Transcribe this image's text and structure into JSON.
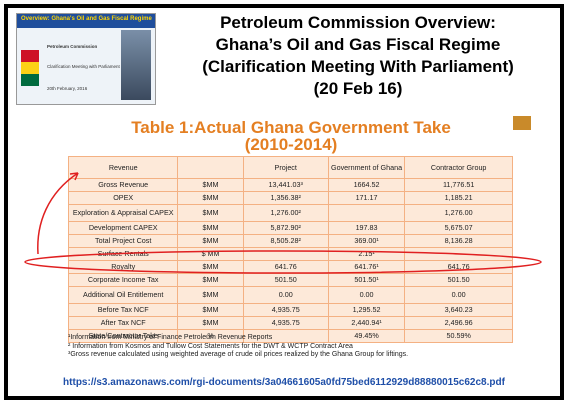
{
  "thumbnail": {
    "title": "Overview: Ghana's Oil and Gas Fiscal Regime",
    "org": "Petroleum Commission",
    "subtitle": "Clarification Meeting with Parliament",
    "date": "20th February, 2016"
  },
  "header": {
    "lines": [
      "Petroleum Commission Overview:",
      "Ghana’s Oil and Gas Fiscal Regime",
      "(Clarification Meeting With Parliament)",
      "(20 Feb 16)"
    ]
  },
  "table": {
    "title": [
      "Table 1:Actual Ghana Government Take",
      "(2010-2014)"
    ],
    "columns": [
      "Revenue",
      "",
      "Project",
      "Government of Ghana",
      "Contractor Group"
    ],
    "rows": [
      [
        "Gross Revenue",
        "$MM",
        "13,441.03³",
        "1664.52",
        "11,776.51"
      ],
      [
        "OPEX",
        "$MM",
        "1,356.38²",
        "171.17",
        "1,185.21"
      ],
      [
        "Exploration & Appraisal CAPEX",
        "$MM",
        "1,276.00²",
        "",
        "1,276.00"
      ],
      [
        "Development CAPEX",
        "$MM",
        "5,872.90²",
        "197.83",
        "5,675.07"
      ],
      [
        "Total Project Cost",
        "$MM",
        "8,505.28²",
        "369.00¹",
        "8,136.28"
      ],
      [
        "Surface Rentals",
        "$ MM",
        "",
        "2.15¹",
        ""
      ],
      [
        "Royalty",
        "$MM",
        "641.76",
        "641.76¹",
        "641.76"
      ],
      [
        "Corporate Income Tax",
        "$MM",
        "501.50",
        "501.50¹",
        "501.50"
      ],
      [
        "Additional Oil Entitlement",
        "$MM",
        "0.00",
        "0.00",
        "0.00"
      ],
      [
        "Before Tax NCF",
        "$MM",
        "4,935.75",
        "1,295.52",
        "3,640.23"
      ],
      [
        "After Tax NCF",
        "$MM",
        "4,935.75",
        "2,440.94¹",
        "2,496.96"
      ],
      [
        "State/Contractor Take",
        "%",
        "",
        "49.45%",
        "50.59%"
      ]
    ],
    "footnotes": [
      "¹Information from Ministry of Finance Petroleum Revenue Reports",
      "² Information from Kosmos and Tullow Cost Statements for the DWT & WCTP Contract Area",
      "³Gross revenue calculated using weighted average of crude oil prices realized by the Ghana Group for liftings."
    ]
  },
  "source": "https://s3.amazonaws.com/rgi-documents/3a04661605a0fd75bed6112929d88880015c62c8.pdf"
}
